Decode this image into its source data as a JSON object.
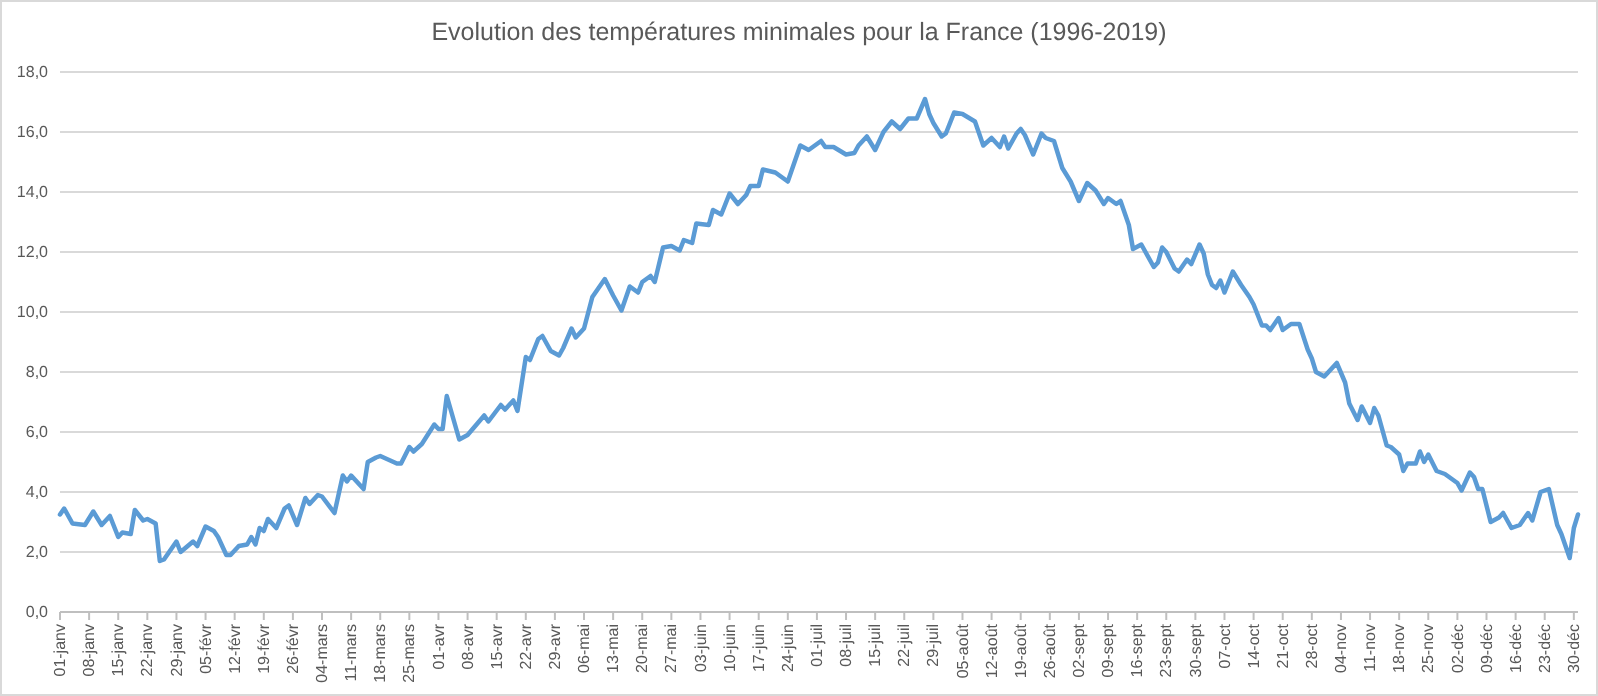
{
  "chart_data": {
    "type": "line",
    "title": "Evolution des températures minimales pour la France (1996-2019)",
    "xlim": [
      "--01-01",
      "--12-31"
    ],
    "xticks": [
      {
        "value": "--01-01",
        "label": "01-janv"
      },
      {
        "value": "--01-08",
        "label": "08-janv"
      },
      {
        "value": "--01-15",
        "label": "15-janv"
      },
      {
        "value": "--01-22",
        "label": "22-janv"
      },
      {
        "value": "--01-29",
        "label": "29-janv"
      },
      {
        "value": "--02-05",
        "label": "05-févr"
      },
      {
        "value": "--02-12",
        "label": "12-févr"
      },
      {
        "value": "--02-19",
        "label": "19-févr"
      },
      {
        "value": "--02-26",
        "label": "26-févr"
      },
      {
        "value": "--03-04",
        "label": "04-mars"
      },
      {
        "value": "--03-11",
        "label": "11-mars"
      },
      {
        "value": "--03-18",
        "label": "18-mars"
      },
      {
        "value": "--03-25",
        "label": "25-mars"
      },
      {
        "value": "--04-01",
        "label": "01-avr"
      },
      {
        "value": "--04-08",
        "label": "08-avr"
      },
      {
        "value": "--04-15",
        "label": "15-avr"
      },
      {
        "value": "--04-22",
        "label": "22-avr"
      },
      {
        "value": "--04-29",
        "label": "29-avr"
      },
      {
        "value": "--05-06",
        "label": "06-mai"
      },
      {
        "value": "--05-13",
        "label": "13-mai"
      },
      {
        "value": "--05-20",
        "label": "20-mai"
      },
      {
        "value": "--05-27",
        "label": "27-mai"
      },
      {
        "value": "--06-03",
        "label": "03-juin"
      },
      {
        "value": "--06-10",
        "label": "10-juin"
      },
      {
        "value": "--06-17",
        "label": "17-juin"
      },
      {
        "value": "--06-24",
        "label": "24-juin"
      },
      {
        "value": "--07-01",
        "label": "01-juil"
      },
      {
        "value": "--07-08",
        "label": "08-juil"
      },
      {
        "value": "--07-15",
        "label": "15-juil"
      },
      {
        "value": "--07-22",
        "label": "22-juil"
      },
      {
        "value": "--07-29",
        "label": "29-juil"
      },
      {
        "value": "--08-05",
        "label": "05-août"
      },
      {
        "value": "--08-12",
        "label": "12-août"
      },
      {
        "value": "--08-19",
        "label": "19-août"
      },
      {
        "value": "--08-26",
        "label": "26-août"
      },
      {
        "value": "--09-02",
        "label": "02-sept"
      },
      {
        "value": "--09-09",
        "label": "09-sept"
      },
      {
        "value": "--09-16",
        "label": "16-sept"
      },
      {
        "value": "--09-23",
        "label": "23-sept"
      },
      {
        "value": "--09-30",
        "label": "30-sept"
      },
      {
        "value": "--10-07",
        "label": "07-oct"
      },
      {
        "value": "--10-14",
        "label": "14-oct"
      },
      {
        "value": "--10-21",
        "label": "21-oct"
      },
      {
        "value": "--10-28",
        "label": "28-oct"
      },
      {
        "value": "--11-04",
        "label": "04-nov"
      },
      {
        "value": "--11-11",
        "label": "11-nov"
      },
      {
        "value": "--11-18",
        "label": "18-nov"
      },
      {
        "value": "--11-25",
        "label": "25-nov"
      },
      {
        "value": "--12-02",
        "label": "02-déc"
      },
      {
        "value": "--12-09",
        "label": "09-déc"
      },
      {
        "value": "--12-16",
        "label": "16-déc"
      },
      {
        "value": "--12-23",
        "label": "23-déc"
      },
      {
        "value": "--12-30",
        "label": "30-déc"
      }
    ],
    "ylim": [
      0,
      18
    ],
    "yticks": [
      {
        "value": 0,
        "label": "0,0"
      },
      {
        "value": 2,
        "label": "2,0"
      },
      {
        "value": 4,
        "label": "4,0"
      },
      {
        "value": 6,
        "label": "6,0"
      },
      {
        "value": 8,
        "label": "8,0"
      },
      {
        "value": 10,
        "label": "10,0"
      },
      {
        "value": 12,
        "label": "12,0"
      },
      {
        "value": 14,
        "label": "14,0"
      },
      {
        "value": 16,
        "label": "16,0"
      },
      {
        "value": 18,
        "label": "18,0"
      }
    ],
    "grid": "y",
    "x": [
      "--01-01",
      "--01-02",
      "--01-04",
      "--01-07",
      "--01-09",
      "--01-11",
      "--01-13",
      "--01-15",
      "--01-16",
      "--01-18",
      "--01-19",
      "--01-21",
      "--01-22",
      "--01-24",
      "--01-25",
      "--01-26",
      "--01-29",
      "--01-30",
      "--02-02",
      "--02-03",
      "--02-05",
      "--02-07",
      "--02-08",
      "--02-10",
      "--02-11",
      "--02-13",
      "--02-15",
      "--02-16",
      "--02-17",
      "--02-18",
      "--02-19",
      "--02-20",
      "--02-22",
      "--02-24",
      "--02-25",
      "--02-27",
      "--02-29",
      "--03-01",
      "--03-03",
      "--03-04",
      "--03-07",
      "--03-09",
      "--03-10",
      "--03-11",
      "--03-14",
      "--03-15",
      "--03-17",
      "--03-18",
      "--03-22",
      "--03-23",
      "--03-25",
      "--03-26",
      "--03-28",
      "--03-31",
      "--04-01",
      "--04-02",
      "--04-03",
      "--04-06",
      "--04-08",
      "--04-12",
      "--04-13",
      "--04-16",
      "--04-17",
      "--04-19",
      "--04-20",
      "--04-22",
      "--04-23",
      "--04-25",
      "--04-26",
      "--04-28",
      "--04-30",
      "--05-01",
      "--05-03",
      "--05-04",
      "--05-06",
      "--05-08",
      "--05-11",
      "--05-13",
      "--05-15",
      "--05-17",
      "--05-19",
      "--05-20",
      "--05-22",
      "--05-23",
      "--05-25",
      "--05-27",
      "--05-29",
      "--05-30",
      "--06-01",
      "--06-02",
      "--06-05",
      "--06-06",
      "--06-08",
      "--06-10",
      "--06-12",
      "--06-14",
      "--06-15",
      "--06-17",
      "--06-18",
      "--06-21",
      "--06-24",
      "--06-27",
      "--06-29",
      "--07-02",
      "--07-03",
      "--07-05",
      "--07-08",
      "--07-10",
      "--07-11",
      "--07-13",
      "--07-15",
      "--07-17",
      "--07-19",
      "--07-21",
      "--07-23",
      "--07-25",
      "--07-27",
      "--07-28",
      "--07-29",
      "--07-31",
      "--08-01",
      "--08-03",
      "--08-05",
      "--08-08",
      "--08-10",
      "--08-12",
      "--08-14",
      "--08-15",
      "--08-16",
      "--08-18",
      "--08-19",
      "--08-20",
      "--08-22",
      "--08-24",
      "--08-25",
      "--08-27",
      "--08-29",
      "--08-31",
      "--09-02",
      "--09-04",
      "--09-06",
      "--09-08",
      "--09-09",
      "--09-11",
      "--09-12",
      "--09-14",
      "--09-15",
      "--09-17",
      "--09-18",
      "--09-20",
      "--09-21",
      "--09-22",
      "--09-23",
      "--09-25",
      "--09-26",
      "--09-28",
      "--09-29",
      "--10-01",
      "--10-02",
      "--10-03",
      "--10-04",
      "--10-05",
      "--10-06",
      "--10-07",
      "--10-09",
      "--10-11",
      "--10-12",
      "--10-13",
      "--10-14",
      "--10-16",
      "--10-17",
      "--10-18",
      "--10-20",
      "--10-21",
      "--10-23",
      "--10-25",
      "--10-27",
      "--10-28",
      "--10-29",
      "--10-31",
      "--11-01",
      "--11-03",
      "--11-05",
      "--11-06",
      "--11-08",
      "--11-09",
      "--11-11",
      "--11-12",
      "--11-13",
      "--11-15",
      "--11-16",
      "--11-18",
      "--11-19",
      "--11-20",
      "--11-22",
      "--11-23",
      "--11-24",
      "--11-25",
      "--11-27",
      "--11-29",
      "--12-02",
      "--12-03",
      "--12-05",
      "--12-06",
      "--12-07",
      "--12-08",
      "--12-10",
      "--12-12",
      "--12-13",
      "--12-15",
      "--12-17",
      "--12-19",
      "--12-20",
      "--12-22",
      "--12-24",
      "--12-26",
      "--12-27",
      "--12-29",
      "--12-30",
      "--12-31"
    ],
    "series": [
      {
        "color": "#5b9bd5",
        "values": [
          3.25,
          3.45,
          2.95,
          2.9,
          3.35,
          2.9,
          3.2,
          2.5,
          2.65,
          2.6,
          3.4,
          3.05,
          3.1,
          2.95,
          1.7,
          1.75,
          2.35,
          2.0,
          2.35,
          2.2,
          2.85,
          2.7,
          2.5,
          1.9,
          1.9,
          2.2,
          2.25,
          2.5,
          2.25,
          2.8,
          2.7,
          3.1,
          2.8,
          3.45,
          3.55,
          2.9,
          3.8,
          3.6,
          3.9,
          3.85,
          3.3,
          4.55,
          4.35,
          4.55,
          4.1,
          5.0,
          5.15,
          5.2,
          4.95,
          4.95,
          5.5,
          5.35,
          5.6,
          6.25,
          6.1,
          6.1,
          7.2,
          5.75,
          5.9,
          6.55,
          6.35,
          6.9,
          6.75,
          7.05,
          6.7,
          8.5,
          8.4,
          9.1,
          9.2,
          8.7,
          8.55,
          8.8,
          9.45,
          9.15,
          9.45,
          10.5,
          11.1,
          10.55,
          10.05,
          10.85,
          10.65,
          11.0,
          11.2,
          11.0,
          12.15,
          12.2,
          12.05,
          12.4,
          12.3,
          12.95,
          12.9,
          13.4,
          13.25,
          13.95,
          13.6,
          13.9,
          14.2,
          14.2,
          14.75,
          14.65,
          14.35,
          15.55,
          15.4,
          15.7,
          15.5,
          15.5,
          15.25,
          15.3,
          15.55,
          15.85,
          15.4,
          16.0,
          16.35,
          16.1,
          16.45,
          16.45,
          17.1,
          16.6,
          16.3,
          15.85,
          15.95,
          16.65,
          16.6,
          16.35,
          15.55,
          15.8,
          15.5,
          15.85,
          15.45,
          15.95,
          16.1,
          15.9,
          15.25,
          15.95,
          15.8,
          15.7,
          14.8,
          14.35,
          13.7,
          14.3,
          14.05,
          13.6,
          13.8,
          13.6,
          13.7,
          12.9,
          12.1,
          12.25,
          12.0,
          11.5,
          11.65,
          12.15,
          12.0,
          11.45,
          11.35,
          11.75,
          11.6,
          12.25,
          11.95,
          11.25,
          10.9,
          10.8,
          11.05,
          10.65,
          11.35,
          10.9,
          10.7,
          10.5,
          10.25,
          9.55,
          9.55,
          9.4,
          9.8,
          9.4,
          9.6,
          9.6,
          8.75,
          8.45,
          8.0,
          7.85,
          8.0,
          8.3,
          7.65,
          6.95,
          6.4,
          6.85,
          6.3,
          6.8,
          6.55,
          5.55,
          5.5,
          5.25,
          4.7,
          4.95,
          4.95,
          5.35,
          5.0,
          5.25,
          4.7,
          4.6,
          4.3,
          4.05,
          4.65,
          4.5,
          4.1,
          4.1,
          3.0,
          3.15,
          3.3,
          2.8,
          2.9,
          3.3,
          3.05,
          4.0,
          4.1,
          2.9,
          2.6,
          1.8,
          2.8,
          3.25
        ]
      }
    ]
  }
}
